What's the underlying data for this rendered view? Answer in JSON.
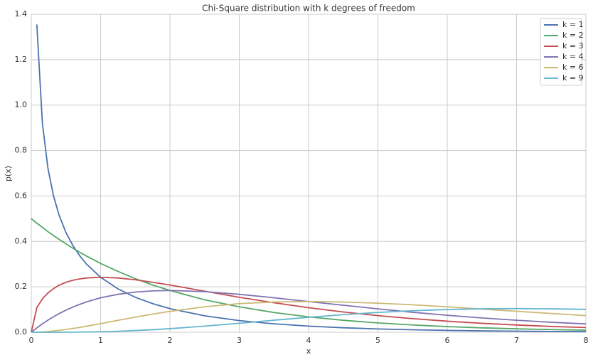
{
  "chart_data": {
    "type": "line",
    "title": "Chi-Square distribution with k degrees of freedom",
    "xlabel": "x",
    "ylabel": "p(x)",
    "x": [
      0,
      0.08,
      0.16,
      0.24,
      0.32,
      0.4,
      0.5,
      0.6,
      0.7,
      0.8,
      1,
      1.25,
      1.5,
      1.75,
      2,
      2.5,
      3,
      3.5,
      4,
      4.5,
      5,
      5.5,
      6,
      6.5,
      7,
      7.5,
      8
    ],
    "series": [
      {
        "name": "k = 1",
        "color": "#4c72b0",
        "values": [
          null,
          1.355,
          0.921,
          0.722,
          0.601,
          0.516,
          0.439,
          0.382,
          0.336,
          0.299,
          0.242,
          0.191,
          0.154,
          0.126,
          0.104,
          0.0723,
          0.0514,
          0.0371,
          0.027,
          0.0198,
          0.0146,
          0.0109,
          0.0081,
          0.0061,
          0.0046,
          0.0034,
          0.0026
        ]
      },
      {
        "name": "k = 2",
        "color": "#55a868",
        "values": [
          0.5,
          0.48,
          0.462,
          0.443,
          0.426,
          0.409,
          0.389,
          0.37,
          0.352,
          0.335,
          0.303,
          0.268,
          0.236,
          0.208,
          0.184,
          0.143,
          0.112,
          0.0869,
          0.0677,
          0.0527,
          0.041,
          0.032,
          0.0249,
          0.0194,
          0.0151,
          0.0118,
          0.0092
        ]
      },
      {
        "name": "k = 3",
        "color": "#c44e52",
        "values": [
          0,
          0.108,
          0.147,
          0.173,
          0.192,
          0.207,
          0.22,
          0.229,
          0.235,
          0.239,
          0.242,
          0.239,
          0.231,
          0.22,
          0.208,
          0.181,
          0.154,
          0.13,
          0.108,
          0.0892,
          0.0732,
          0.0598,
          0.0487,
          0.0394,
          0.0319,
          0.0257,
          0.0207
        ]
      },
      {
        "name": "k = 4",
        "color": "#8172b2",
        "values": [
          0,
          0.0192,
          0.0369,
          0.0532,
          0.0682,
          0.0819,
          0.0974,
          0.111,
          0.123,
          0.134,
          0.152,
          0.167,
          0.177,
          0.182,
          0.184,
          0.179,
          0.167,
          0.152,
          0.135,
          0.119,
          0.103,
          0.0879,
          0.0747,
          0.063,
          0.0528,
          0.0441,
          0.0366
        ]
      },
      {
        "name": "k = 6",
        "color": "#ccb974",
        "values": [
          0,
          0.0004,
          0.0015,
          0.0032,
          0.0055,
          0.0082,
          0.0122,
          0.0167,
          0.0216,
          0.0268,
          0.0379,
          0.0523,
          0.0664,
          0.0798,
          0.092,
          0.112,
          0.126,
          0.133,
          0.135,
          0.133,
          0.128,
          0.121,
          0.112,
          0.102,
          0.0925,
          0.0827,
          0.0733
        ]
      },
      {
        "name": "k = 9",
        "color": "#64b5cd",
        "values": [
          0,
          0,
          0,
          0,
          0.0001,
          0.0001,
          0.0003,
          0.0005,
          0.0008,
          0.0012,
          0.0023,
          0.0044,
          0.0074,
          0.0112,
          0.0158,
          0.0269,
          0.0396,
          0.053,
          0.0658,
          0.0774,
          0.0872,
          0.0948,
          0.1001,
          0.1031,
          0.1041,
          0.1032,
          0.1008
        ]
      }
    ],
    "xlim": [
      0,
      8
    ],
    "xticks": [
      0,
      1,
      2,
      3,
      4,
      5,
      6,
      7,
      8
    ],
    "ylim": [
      0,
      1.4
    ],
    "yticks": [
      {
        "value": 0,
        "label": "0.0"
      },
      0.2,
      0.4,
      0.6,
      0.8,
      {
        "value": 1,
        "label": "1.0"
      },
      1.2,
      1.4
    ],
    "grid": true,
    "legend": "upper right"
  }
}
